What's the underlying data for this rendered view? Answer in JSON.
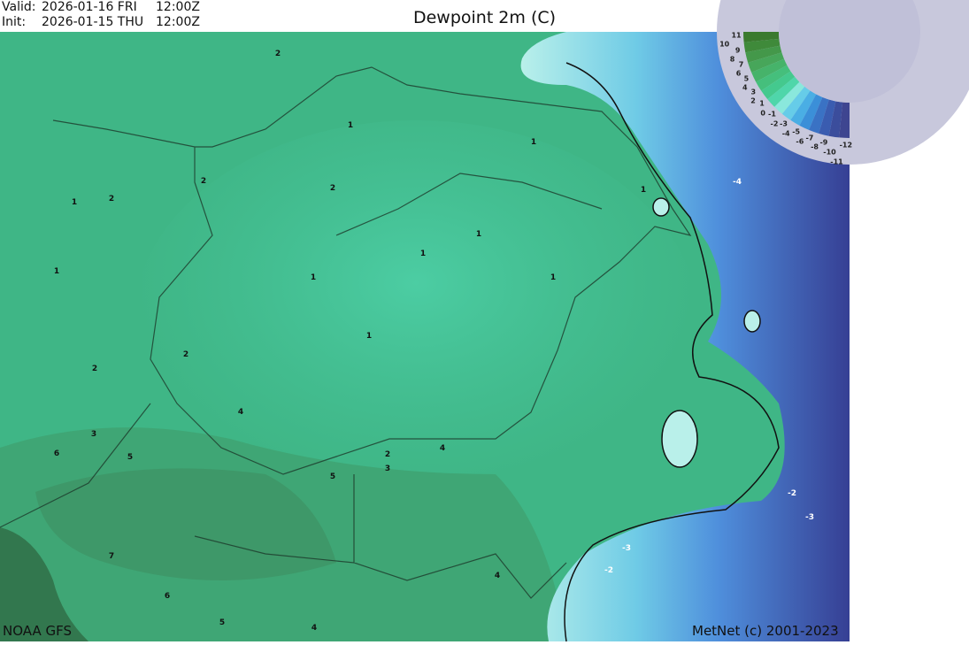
{
  "header": {
    "valid_label": "Valid:",
    "valid_date": "2026-01-16 FRI",
    "valid_time": "12:00Z",
    "init_label": "Init:",
    "init_date": "2026-01-15 THU",
    "init_time": "12:00Z",
    "title": "Dewpoint 2m (C)"
  },
  "legend": {
    "labels": [
      "11",
      "10",
      "9",
      "8",
      "7",
      "6",
      "5",
      "4",
      "3",
      "2",
      "1",
      "0",
      "-1",
      "-2",
      "-3",
      "-4",
      "-5",
      "-6",
      "-7",
      "-8",
      "-9",
      "-10",
      "-11",
      "-12"
    ],
    "colors": [
      "#3a7a2e",
      "#3f8a3a",
      "#44984a",
      "#47a65a",
      "#46b36a",
      "#45bf7c",
      "#44c98e",
      "#4fd6aa",
      "#8ae8dc",
      "#66cce8",
      "#4aaee4",
      "#3b8fd8",
      "#3a72c4",
      "#3a5cb0",
      "#3b4d9c",
      "#3e4590"
    ]
  },
  "contour_labels": [
    "2",
    "1",
    "1",
    "2",
    "2",
    "1",
    "2",
    "1",
    "-4",
    "1",
    "1",
    "1",
    "1",
    "1",
    "1",
    "2",
    "2",
    "4",
    "3",
    "6",
    "5",
    "2",
    "3",
    "4",
    "5",
    "-2",
    "-3",
    "-3",
    "-2",
    "7",
    "4",
    "6",
    "5",
    "4"
  ],
  "colors": {
    "land_center": "#48c79c",
    "land_west": "#3db585",
    "land_southwest": "#3f9d6e",
    "coast_light": "#b9f0ea",
    "sea_mid": "#4f9fe2",
    "sea_dark": "#363f94"
  },
  "footer": {
    "source": "NOAA GFS",
    "credit": "MetNet (c) 2001-2023"
  }
}
